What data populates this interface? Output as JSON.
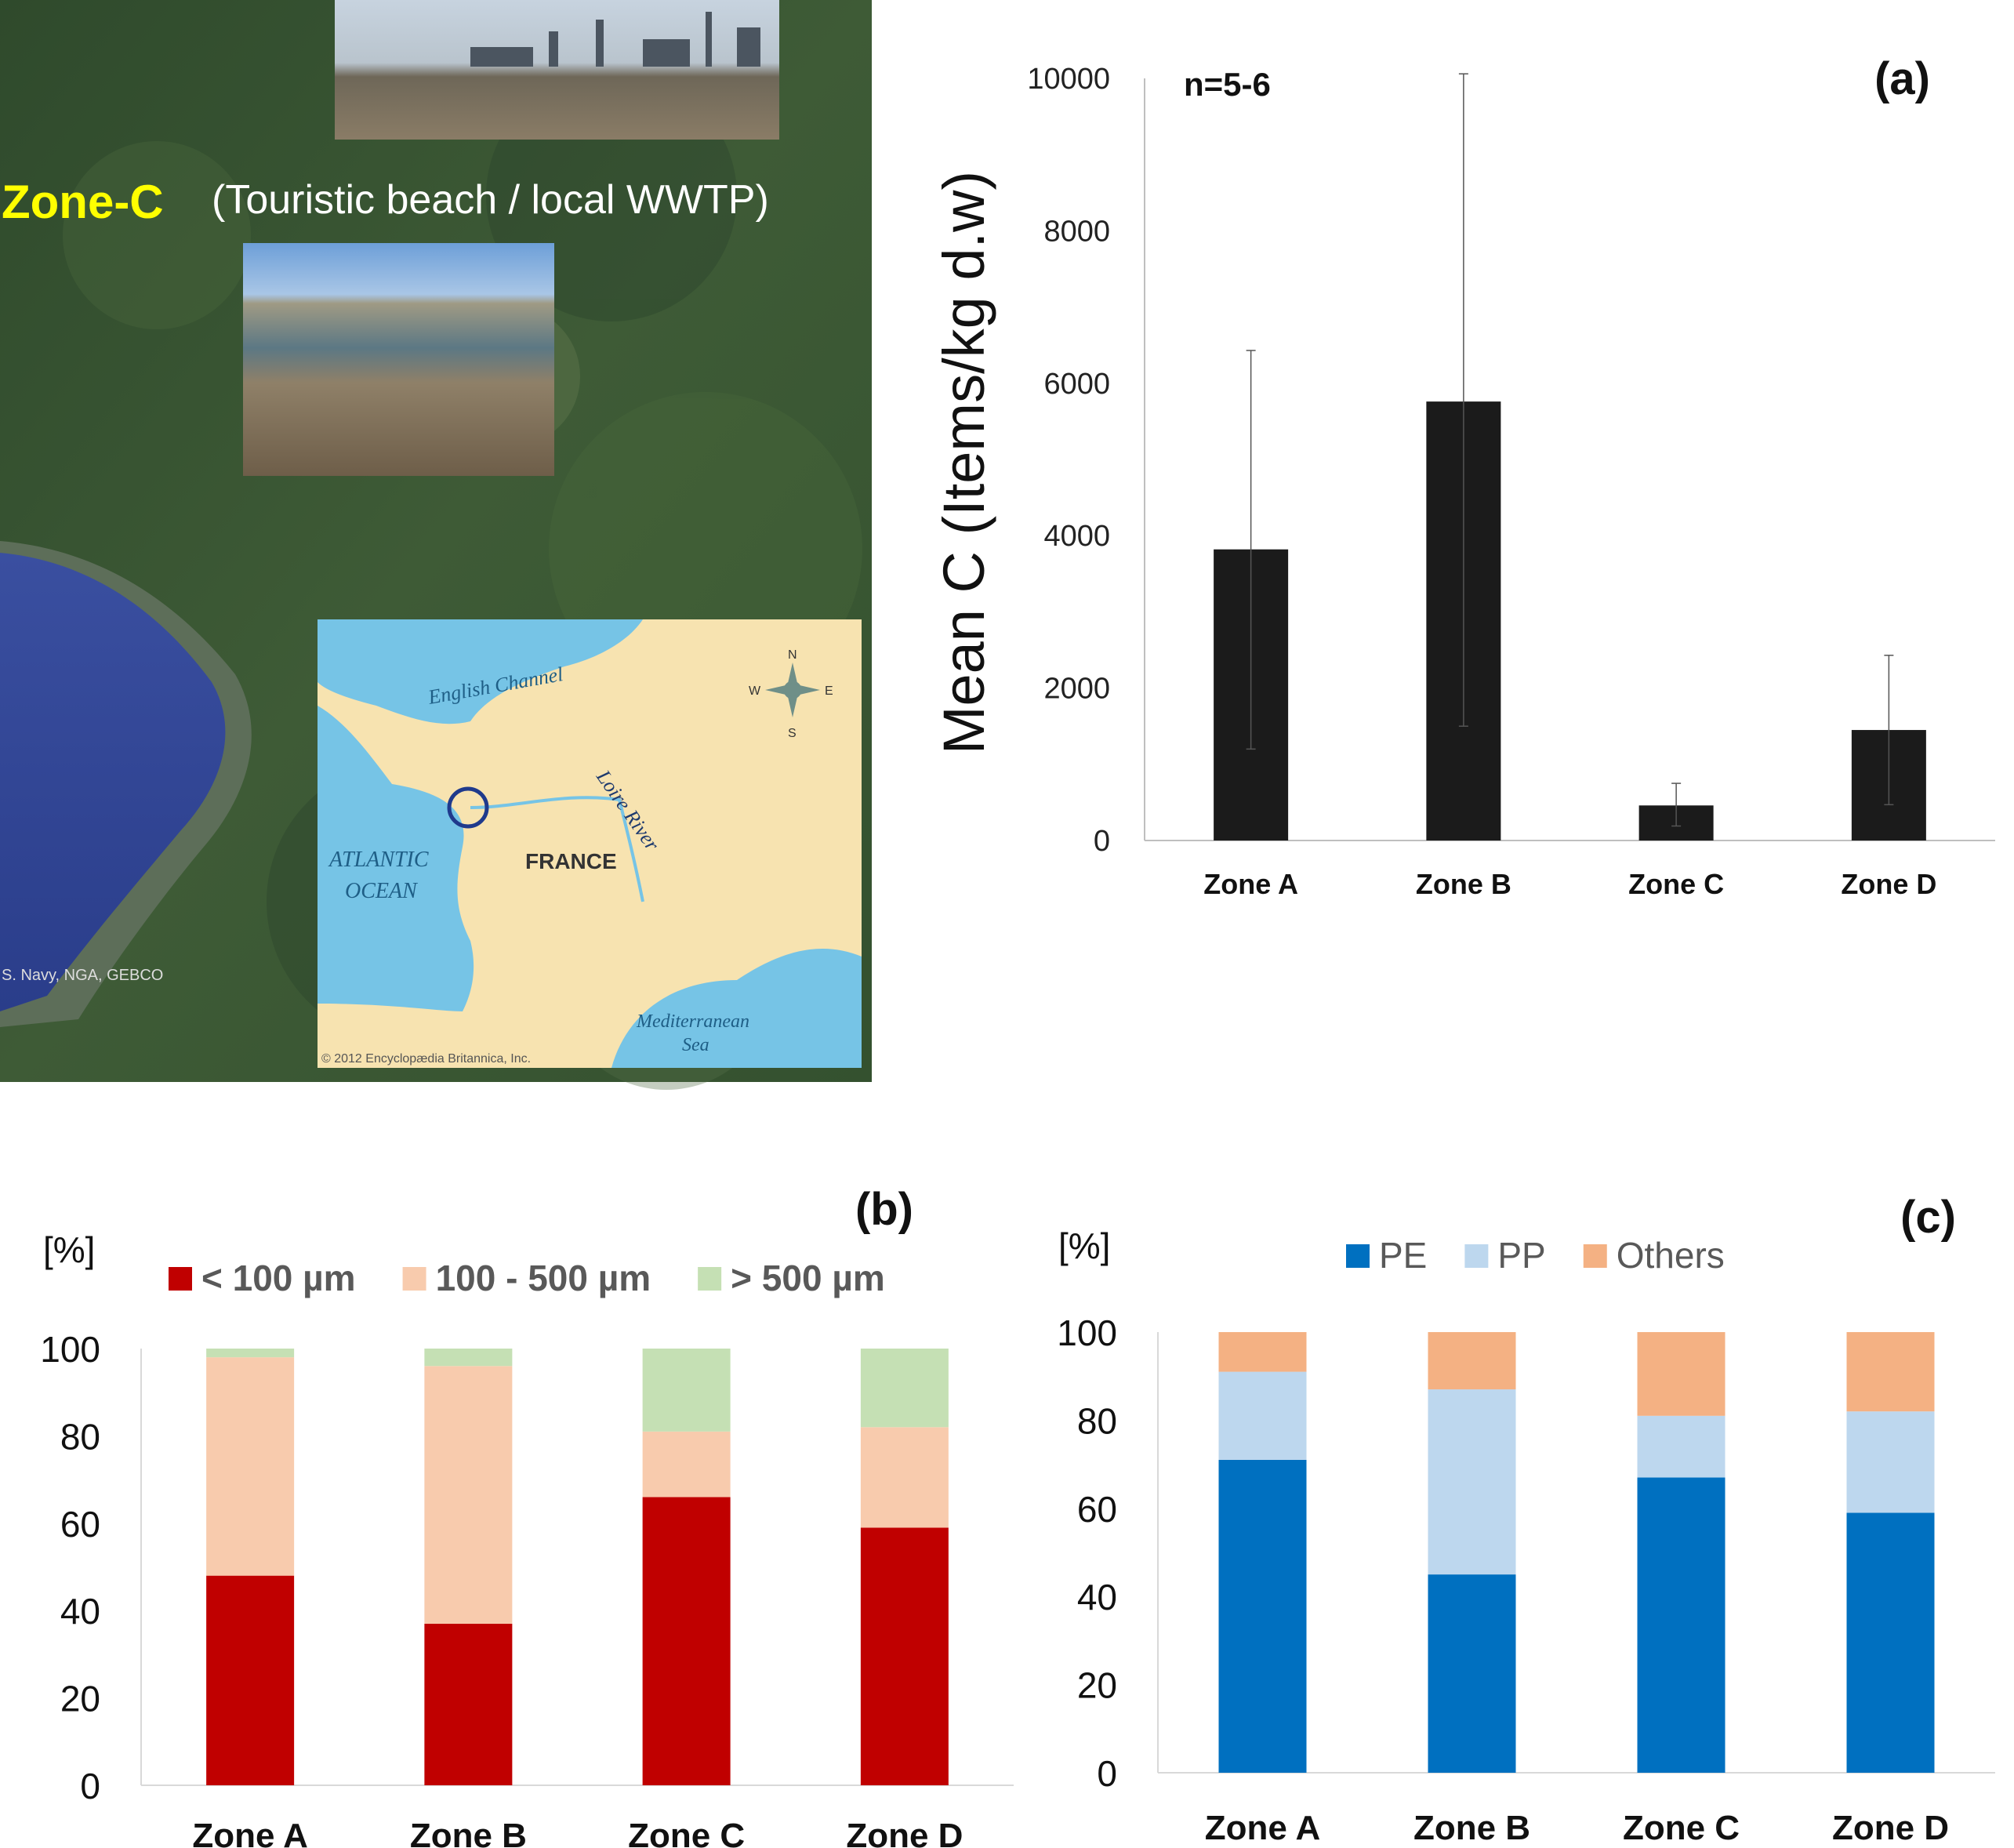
{
  "map_panel": {
    "zone_label": "Zone-C",
    "zone_description": "(Touristic beach / local WWTP)",
    "attribution": "S. Navy, NGA, GEBCO",
    "inset": {
      "english_channel": "English Channel",
      "loire_river": "Loire River",
      "atlantic_line1": "ATLANTIC",
      "atlantic_line2": "OCEAN",
      "france": "FRANCE",
      "med_line1": "Mediterranean",
      "med_line2": "Sea",
      "copyright": "© 2012 Encyclopædia Britannica, Inc.",
      "compass": {
        "n": "N",
        "s": "S",
        "e": "E",
        "w": "W"
      }
    }
  },
  "chart_data": [
    {
      "panel": "(a)",
      "type": "bar",
      "annotation": "n=5-6",
      "ylabel": "Mean C (Items/kg d.w)",
      "ylim": [
        0,
        10000
      ],
      "yticks": [
        0,
        2000,
        4000,
        6000,
        8000,
        10000
      ],
      "categories": [
        "Zone A",
        "Zone B",
        "Zone C",
        "Zone D"
      ],
      "values": [
        3820,
        5760,
        460,
        1450
      ],
      "error_low": [
        1200,
        1500,
        190,
        470
      ],
      "error_high": [
        6430,
        10060,
        750,
        2430
      ],
      "colors": {
        "bar": "#1b1b1b"
      },
      "grid": false
    },
    {
      "panel": "(b)",
      "type": "bar",
      "stacked": true,
      "unit_label": "[%]",
      "ylim": [
        0,
        100
      ],
      "yticks": [
        0,
        20,
        40,
        60,
        80,
        100
      ],
      "categories": [
        "Zone A",
        "Zone B",
        "Zone C",
        "Zone D"
      ],
      "series": [
        {
          "name": "< 100 µm",
          "color": "#c00000",
          "values": [
            48,
            37,
            66,
            59
          ]
        },
        {
          "name": "100 - 500 µm",
          "color": "#f8cbad",
          "values": [
            50,
            59,
            15,
            23
          ]
        },
        {
          "name": "> 500 µm",
          "color": "#c5e0b4",
          "values": [
            2,
            4,
            19,
            18
          ]
        }
      ],
      "legend": "top",
      "grid": false
    },
    {
      "panel": "(c)",
      "type": "bar",
      "stacked": true,
      "unit_label": "[%]",
      "ylim": [
        0,
        100
      ],
      "yticks": [
        0,
        20,
        40,
        60,
        80,
        100
      ],
      "categories": [
        "Zone A",
        "Zone B",
        "Zone C",
        "Zone D"
      ],
      "series": [
        {
          "name": "PE",
          "color": "#0070c0",
          "values": [
            71,
            45,
            67,
            59
          ]
        },
        {
          "name": "PP",
          "color": "#bdd7ee",
          "values": [
            20,
            42,
            14,
            23
          ]
        },
        {
          "name": "Others",
          "color": "#f4b183",
          "values": [
            9,
            13,
            19,
            18
          ]
        }
      ],
      "legend": "top",
      "grid": false
    }
  ]
}
